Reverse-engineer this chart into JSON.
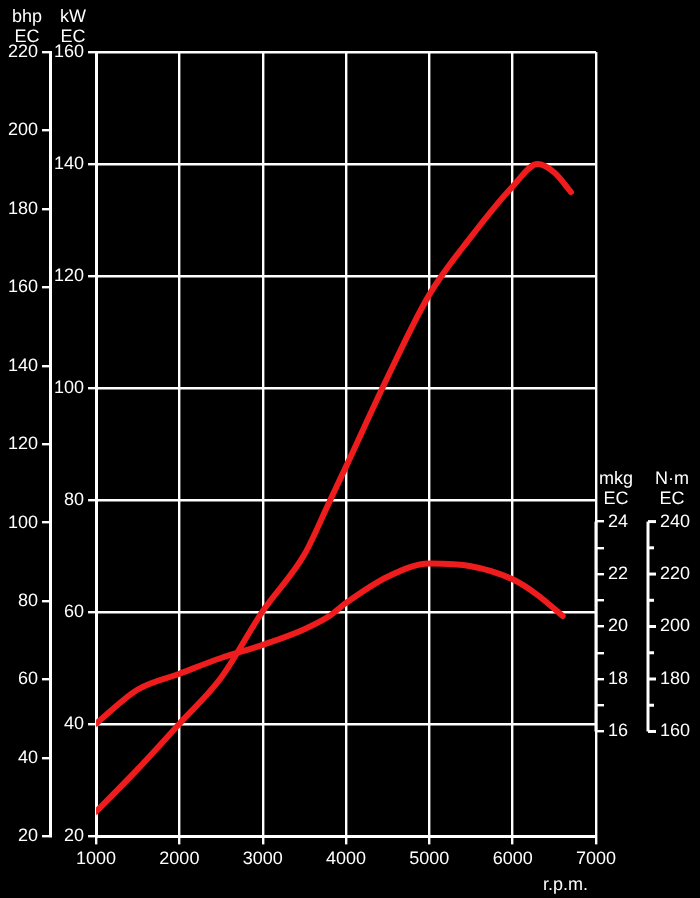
{
  "chart_data": {
    "type": "line",
    "xlabel": "r.p.m.",
    "ylabel": "kW EC",
    "y2label": "mkg EC",
    "y3label": "bhp EC",
    "annotations": [
      "N·m EC",
      "240",
      "220",
      "200",
      "180",
      "160"
    ],
    "x": [
      1000,
      1500,
      2000,
      2500,
      3000,
      3500,
      3800,
      4000,
      4500,
      5000,
      5500,
      6000,
      6300,
      6500,
      6700
    ],
    "series": [
      {
        "color": "#ee1c1c",
        "values": [
          24.4,
          32,
          40.1,
          48.3,
          60.2,
          70.3,
          79.7,
          86,
          102,
          116.7,
          127,
          136,
          140,
          138.5,
          135
        ]
      },
      {
        "color": "#ee1c1c",
        "axis": "y2",
        "x": [
          1000,
          1500,
          2000,
          2500,
          3000,
          3500,
          3800,
          4000,
          4500,
          5000,
          5500,
          6000,
          6300,
          6600
        ],
        "values": [
          16.3,
          17.6,
          18.2,
          18.8,
          19.3,
          19.9,
          20.4,
          20.9,
          21.9,
          22.4,
          22.3,
          21.8,
          21.2,
          20.4
        ]
      }
    ],
    "xlim": [
      1000,
      7000
    ],
    "xticks": [
      1000,
      2000,
      3000,
      4000,
      5000,
      6000,
      7000
    ],
    "ylim": [
      20,
      160
    ],
    "yticks": [
      20,
      40,
      60,
      80,
      100,
      120,
      140,
      160
    ],
    "y2lim": [
      12,
      41.9
    ],
    "y2ticks": [
      16,
      {
        "value": 17,
        "label": null
      },
      18,
      {
        "value": 19,
        "label": null
      },
      20,
      {
        "value": 21,
        "label": null
      },
      22,
      {
        "value": 23,
        "label": null
      },
      24
    ],
    "y3lim": [
      20,
      220
    ],
    "y3ticks": [
      20,
      40,
      60,
      80,
      100,
      120,
      140,
      160,
      180,
      200,
      220
    ],
    "grid": true,
    "legend": false,
    "marker": "none",
    "line_style": "solid"
  }
}
